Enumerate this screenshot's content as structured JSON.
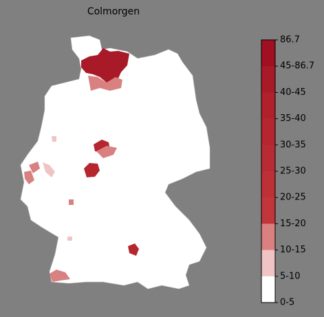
{
  "title": "Colmorgen",
  "legend": {
    "labels": [
      "86.7",
      "45-86.7",
      "40-45",
      "35-40",
      "30-35",
      "25-30",
      "20-25",
      "15-20",
      "10-15",
      "5-10",
      "0-5"
    ],
    "colors": [
      "#a00f22",
      "#a81a27",
      "#b0212b",
      "#b5262f",
      "#b92b33",
      "#bd3036",
      "#c1353b",
      "#d98080",
      "#f0c4c4",
      "#ffffff"
    ]
  }
}
